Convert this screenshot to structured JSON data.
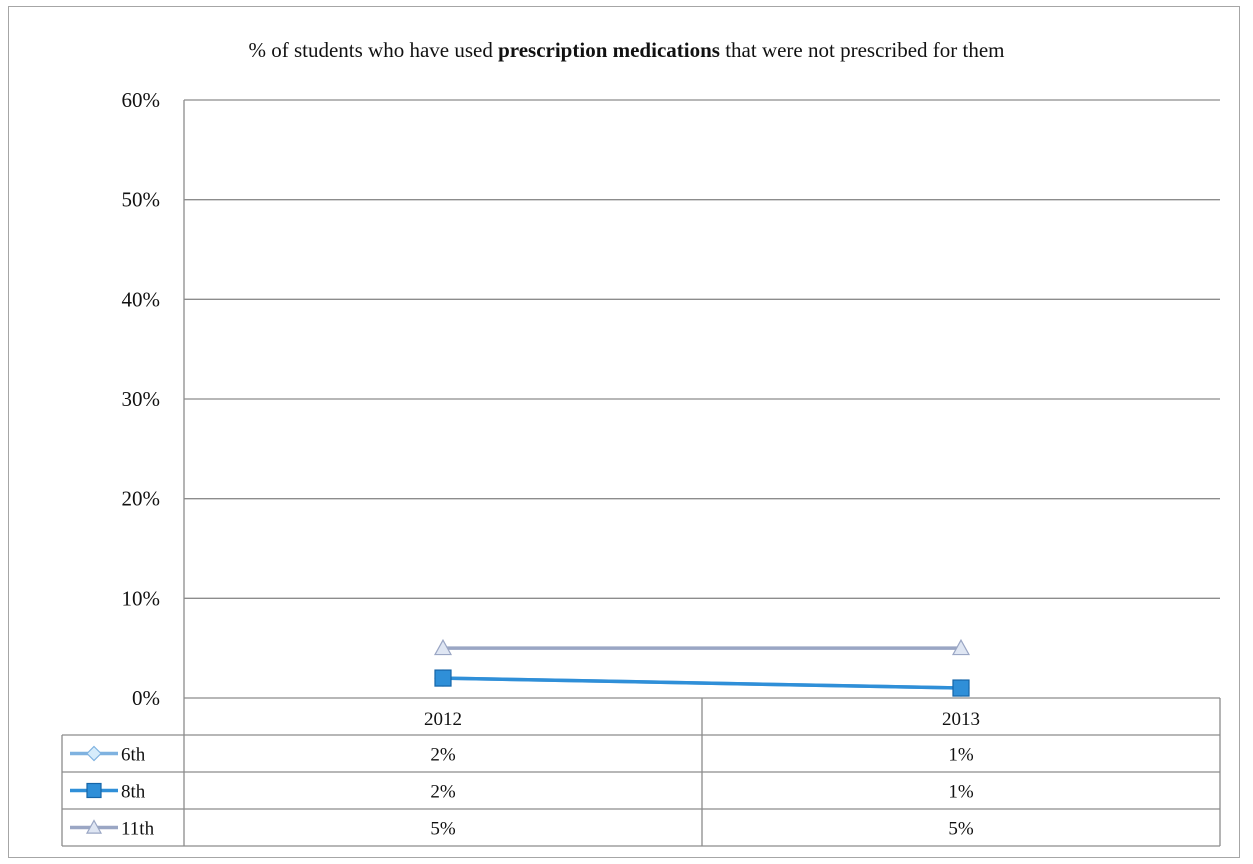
{
  "chart_data": {
    "type": "line",
    "title": {
      "prefix": "% of students who have used ",
      "bold": "prescription medications",
      "suffix": " that were not prescribed for them"
    },
    "categories": [
      "2012",
      "2013"
    ],
    "ylim": [
      0,
      60
    ],
    "yticks": [
      0,
      10,
      20,
      30,
      40,
      50,
      60
    ],
    "ytick_labels": [
      "0%",
      "10%",
      "20%",
      "30%",
      "40%",
      "50%",
      "60%"
    ],
    "grid": true,
    "legend": "data-table-below",
    "series": [
      {
        "name": "6th",
        "values": [
          2,
          1
        ],
        "labels": [
          "2%",
          "1%"
        ],
        "color": "#7fb2e0",
        "marker": "diamond"
      },
      {
        "name": "8th",
        "values": [
          2,
          1
        ],
        "labels": [
          "2%",
          "1%"
        ],
        "color": "#2f8fd8",
        "marker": "square"
      },
      {
        "name": "11th",
        "values": [
          5,
          5
        ],
        "labels": [
          "5%",
          "5%"
        ],
        "color": "#9aa6c4",
        "marker": "triangle"
      }
    ]
  }
}
